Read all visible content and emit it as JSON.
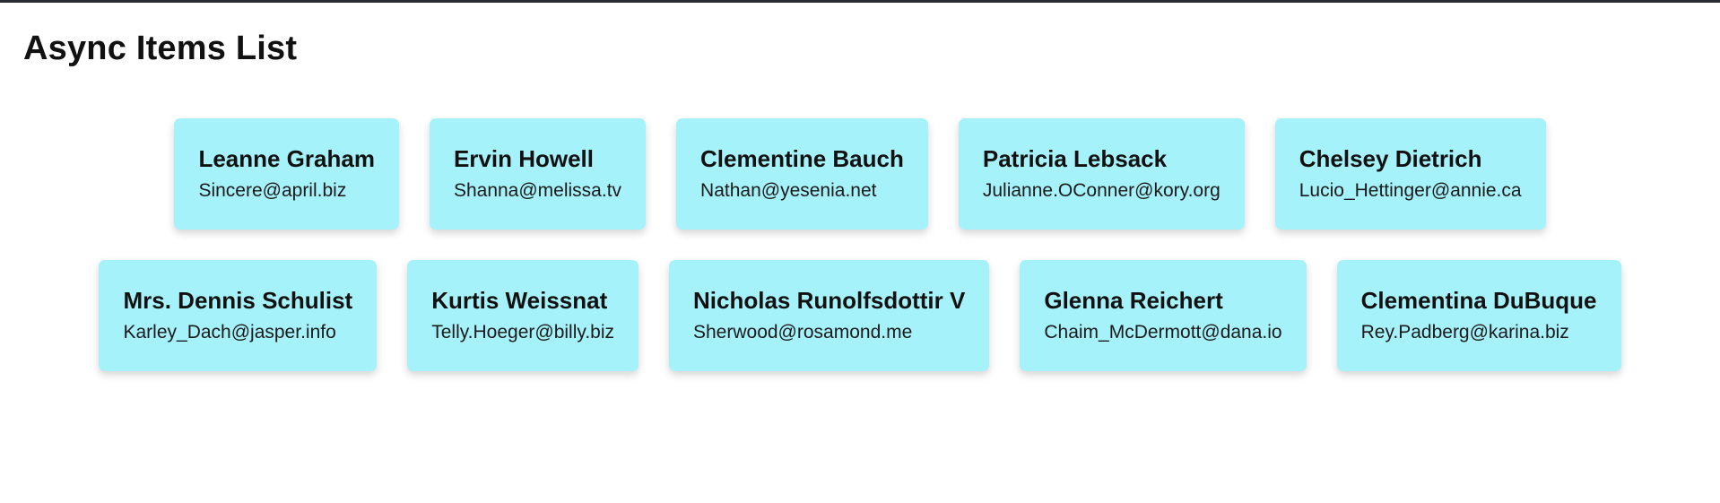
{
  "page": {
    "title": "Async Items List"
  },
  "colors": {
    "card_background": "#a6f2fa",
    "top_border": "#2b2b33"
  },
  "items": [
    {
      "name": "Leanne Graham",
      "email": "Sincere@april.biz"
    },
    {
      "name": "Ervin Howell",
      "email": "Shanna@melissa.tv"
    },
    {
      "name": "Clementine Bauch",
      "email": "Nathan@yesenia.net"
    },
    {
      "name": "Patricia Lebsack",
      "email": "Julianne.OConner@kory.org"
    },
    {
      "name": "Chelsey Dietrich",
      "email": "Lucio_Hettinger@annie.ca"
    },
    {
      "name": "Mrs. Dennis Schulist",
      "email": "Karley_Dach@jasper.info"
    },
    {
      "name": "Kurtis Weissnat",
      "email": "Telly.Hoeger@billy.biz"
    },
    {
      "name": "Nicholas Runolfsdottir V",
      "email": "Sherwood@rosamond.me"
    },
    {
      "name": "Glenna Reichert",
      "email": "Chaim_McDermott@dana.io"
    },
    {
      "name": "Clementina DuBuque",
      "email": "Rey.Padberg@karina.biz"
    }
  ]
}
